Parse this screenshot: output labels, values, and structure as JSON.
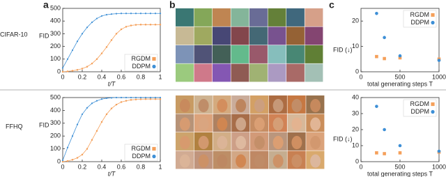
{
  "panel_labels": [
    "a",
    "b",
    "c"
  ],
  "row_labels": [
    "CIFAR-10",
    "FFHQ"
  ],
  "chart_data": [
    {
      "type": "line",
      "xlabel": "t/T",
      "ylabel": "FID",
      "x": [
        0,
        0.05,
        0.1,
        0.15,
        0.2,
        0.25,
        0.3,
        0.35,
        0.4,
        0.45,
        0.5,
        0.55,
        0.6,
        0.65,
        0.7,
        0.75,
        0.8,
        0.85,
        0.9,
        0.95,
        1
      ],
      "series": [
        {
          "name": "RGDM",
          "color": "#f5a05a",
          "marker": "square",
          "values": [
            0,
            3,
            8,
            15,
            25,
            40,
            65,
            100,
            145,
            195,
            250,
            300,
            335,
            355,
            365,
            370,
            372,
            372,
            372,
            372,
            372
          ]
        },
        {
          "name": "DDPM",
          "color": "#3d8fd6",
          "marker": "circle",
          "values": [
            30,
            100,
            170,
            240,
            300,
            350,
            390,
            420,
            440,
            450,
            455,
            458,
            460,
            460,
            460,
            460,
            460,
            460,
            460,
            460,
            460
          ]
        }
      ],
      "xlim": [
        0,
        1
      ],
      "xticks": [
        0,
        0.2,
        0.4,
        0.6,
        0.8,
        1
      ],
      "ylim": [
        0,
        500
      ],
      "yticks": [
        0,
        100,
        200,
        300,
        400,
        500
      ],
      "legend": "lower right"
    },
    {
      "type": "scatter",
      "xlabel": "total generating steps T",
      "ylabel": "FID (↓)",
      "x": [
        200,
        300,
        500,
        1000
      ],
      "series": [
        {
          "name": "RGDM",
          "color": "#f5a05a",
          "marker": "square",
          "values": [
            6,
            5.2,
            5.5,
            5
          ]
        },
        {
          "name": "DDPM",
          "color": "#3d8fd6",
          "marker": "circle",
          "values": [
            23,
            13.5,
            6.3,
            4.5
          ]
        }
      ],
      "xlim": [
        0,
        1000
      ],
      "xticks": [
        0,
        500,
        1000
      ],
      "ylim": [
        0,
        25
      ],
      "yticks": [
        0,
        10,
        20
      ],
      "legend": "upper right"
    },
    {
      "type": "line",
      "xlabel": "t/T",
      "ylabel": "FID",
      "x": [
        0,
        0.05,
        0.1,
        0.15,
        0.2,
        0.25,
        0.3,
        0.35,
        0.4,
        0.45,
        0.5,
        0.55,
        0.6,
        0.65,
        0.7,
        0.75,
        0.8,
        0.85,
        0.9,
        0.95,
        1
      ],
      "series": [
        {
          "name": "RGDM",
          "color": "#f5a05a",
          "marker": "square",
          "values": [
            0,
            5,
            15,
            30,
            55,
            100,
            170,
            240,
            310,
            370,
            415,
            445,
            465,
            475,
            482,
            485,
            487,
            488,
            488,
            488,
            488
          ]
        },
        {
          "name": "DDPM",
          "color": "#3d8fd6",
          "marker": "circle",
          "values": [
            10,
            110,
            200,
            290,
            370,
            420,
            455,
            475,
            488,
            495,
            498,
            500,
            500,
            500,
            500,
            500,
            500,
            500,
            500,
            500,
            500
          ]
        }
      ],
      "xlim": [
        0,
        1
      ],
      "xticks": [
        0,
        0.2,
        0.4,
        0.6,
        0.8,
        1
      ],
      "ylim": [
        0,
        500
      ],
      "yticks": [
        0,
        100,
        200,
        300,
        400,
        500
      ],
      "legend": "lower right"
    },
    {
      "type": "scatter",
      "xlabel": "total generating steps T",
      "ylabel": "FID (↓)",
      "x": [
        200,
        300,
        500,
        1000
      ],
      "series": [
        {
          "name": "RGDM",
          "color": "#f5a05a",
          "marker": "square",
          "values": [
            5.5,
            5,
            5.5,
            6
          ]
        },
        {
          "name": "DDPM",
          "color": "#3d8fd6",
          "marker": "circle",
          "values": [
            34.5,
            20,
            10,
            6.5
          ]
        }
      ],
      "xlim": [
        0,
        1000
      ],
      "xticks": [
        0,
        500,
        1000
      ],
      "ylim": [
        0,
        40
      ],
      "yticks": [
        0,
        10,
        20,
        30,
        40
      ],
      "legend": "upper right"
    }
  ]
}
